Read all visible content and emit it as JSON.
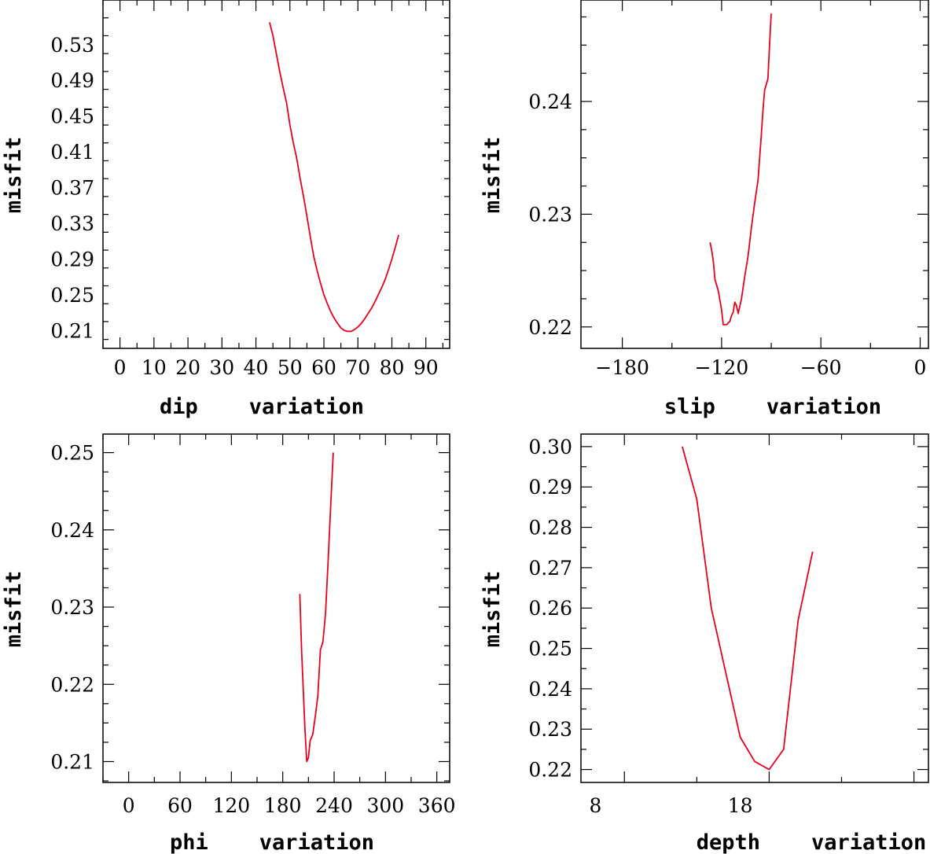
{
  "chart_data": [
    {
      "type": "line",
      "xlabel": "dip    variation",
      "ylabel": "misfit",
      "xlim": [
        -5,
        97
      ],
      "ylim": [
        0.19,
        0.58
      ],
      "xticks": [
        0,
        10,
        20,
        30,
        40,
        50,
        60,
        70,
        80,
        90
      ],
      "xtick_labels": [
        "0",
        "10",
        "20",
        "30",
        "40",
        "50",
        "60",
        "70",
        "80",
        "90"
      ],
      "yticks": [
        0.21,
        0.25,
        0.29,
        0.33,
        0.37,
        0.41,
        0.45,
        0.49,
        0.53
      ],
      "ytick_labels": [
        "0.21",
        "0.25",
        "0.29",
        "0.33",
        "0.37",
        "0.41",
        "0.45",
        "0.49",
        "0.53"
      ],
      "yminor_step": 0.02,
      "x": [
        44,
        45,
        46,
        47,
        48,
        49,
        50,
        51,
        52,
        53,
        54,
        55,
        56,
        57,
        58,
        59,
        60,
        61,
        62,
        63,
        64,
        65,
        66,
        67,
        68,
        69,
        70,
        71,
        72,
        73,
        74,
        75,
        76,
        77,
        78,
        79,
        80,
        81,
        82
      ],
      "values": [
        0.555,
        0.54,
        0.52,
        0.5,
        0.482,
        0.465,
        0.44,
        0.42,
        0.403,
        0.38,
        0.36,
        0.338,
        0.315,
        0.293,
        0.277,
        0.263,
        0.25,
        0.24,
        0.231,
        0.224,
        0.218,
        0.213,
        0.21,
        0.209,
        0.209,
        0.211,
        0.214,
        0.218,
        0.223,
        0.229,
        0.235,
        0.242,
        0.25,
        0.258,
        0.267,
        0.278,
        0.29,
        0.303,
        0.317
      ]
    },
    {
      "type": "line",
      "xlabel": "slip    variation",
      "ylabel": "misfit",
      "xlim": [
        -205,
        5
      ],
      "ylim": [
        0.2181,
        0.249
      ],
      "xticks": [
        -180,
        -120,
        -60,
        0
      ],
      "xtick_labels": [
        "−180",
        "−120",
        "−60",
        "0"
      ],
      "yticks": [
        0.22,
        0.23,
        0.24
      ],
      "ytick_labels": [
        "0.22",
        "0.23",
        "0.24"
      ],
      "yminor_step": 0.0025,
      "x": [
        -127,
        -126,
        -125,
        -124,
        -122,
        -120,
        -119,
        -117,
        -115,
        -114,
        -113,
        -112,
        -111,
        -110,
        -108,
        -106,
        -104,
        -102,
        -100,
        -98,
        -96,
        -95,
        -94,
        -92,
        -91,
        -90
      ],
      "values": [
        0.2275,
        0.2268,
        0.2258,
        0.2242,
        0.2232,
        0.2215,
        0.2202,
        0.2202,
        0.2205,
        0.221,
        0.2213,
        0.2222,
        0.2219,
        0.2212,
        0.2225,
        0.2245,
        0.2263,
        0.2288,
        0.231,
        0.233,
        0.237,
        0.2392,
        0.241,
        0.242,
        0.245,
        0.2478
      ]
    },
    {
      "type": "line",
      "xlabel": "phi    variation",
      "ylabel": "misfit",
      "xlim": [
        -30,
        375
      ],
      "ylim": [
        0.2073,
        0.2524
      ],
      "xticks": [
        0,
        60,
        120,
        180,
        240,
        300,
        360
      ],
      "xtick_labels": [
        "0",
        "60",
        "120",
        "180",
        "240",
        "300",
        "360"
      ],
      "yticks": [
        0.21,
        0.22,
        0.23,
        0.24,
        0.25
      ],
      "ytick_labels": [
        "0.21",
        "0.22",
        "0.23",
        "0.24",
        "0.25"
      ],
      "yminor_step": 0.0025,
      "x": [
        200,
        202,
        206,
        208,
        210,
        212,
        215,
        218,
        221,
        224,
        227,
        230,
        233,
        236,
        239
      ],
      "values": [
        0.2317,
        0.2245,
        0.214,
        0.21,
        0.2105,
        0.2127,
        0.2135,
        0.2158,
        0.2185,
        0.2245,
        0.2255,
        0.2292,
        0.236,
        0.243,
        0.25
      ]
    },
    {
      "type": "line",
      "xlabel": "depth    variation",
      "ylabel": "misfit",
      "xlim": [
        7,
        31
      ],
      "ylim": [
        0.2168,
        0.3031
      ],
      "xticks": [
        8,
        18
      ],
      "xtick_labels": [
        "8",
        "18"
      ],
      "yticks": [
        0.22,
        0.23,
        0.24,
        0.25,
        0.26,
        0.27,
        0.28,
        0.29,
        0.3
      ],
      "ytick_labels": [
        "0.22",
        "0.23",
        "0.24",
        "0.25",
        "0.26",
        "0.27",
        "0.28",
        "0.29",
        "0.30"
      ],
      "yminor_step": 0.005,
      "x": [
        14,
        15,
        16,
        18,
        19,
        20,
        21,
        22,
        23
      ],
      "values": [
        0.3,
        0.287,
        0.26,
        0.228,
        0.222,
        0.22,
        0.225,
        0.257,
        0.274
      ]
    }
  ]
}
